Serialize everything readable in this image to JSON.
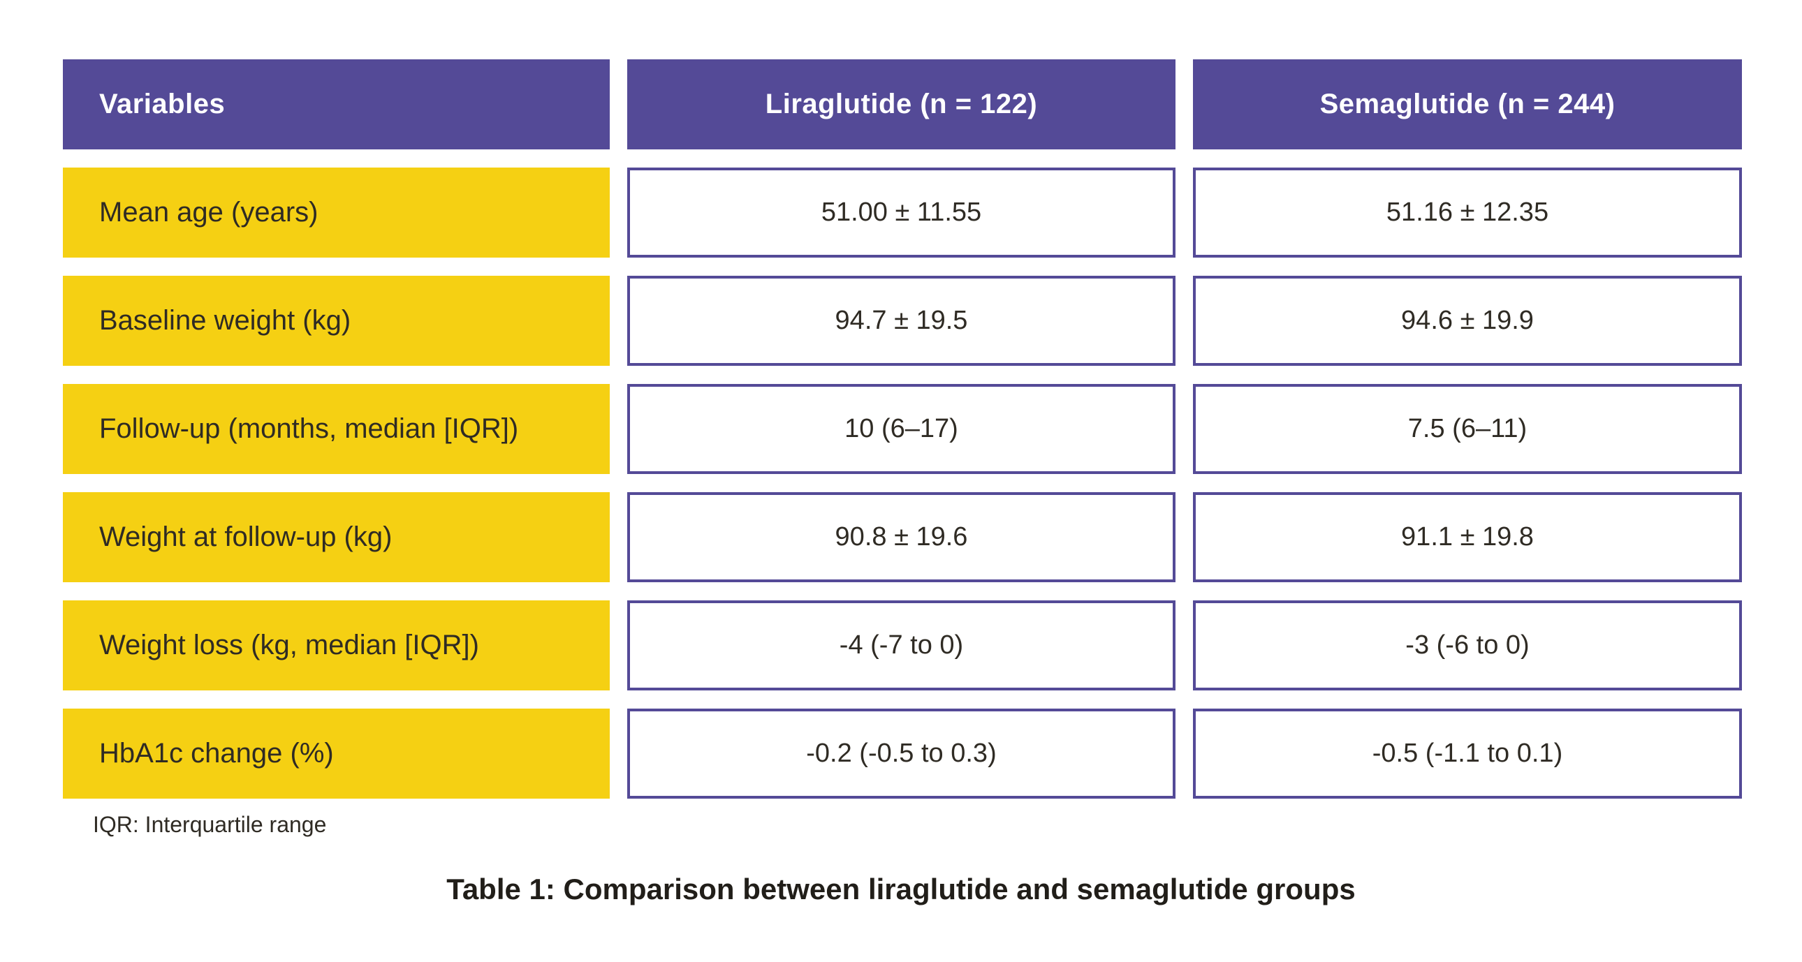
{
  "colors": {
    "header_purple": "#544a97",
    "cell_border_purple": "#544a97",
    "label_yellow": "#f5d013",
    "header_text": "#ffffff",
    "body_text": "#2f2b24",
    "background": "#ffffff"
  },
  "table": {
    "columns": {
      "variables": "Variables",
      "liraglutide": "Liraglutide (n = 122)",
      "semaglutide": "Semaglutide (n = 244)"
    },
    "rows": [
      {
        "label": "Mean age (years)",
        "liraglutide": "51.00 ± 11.55",
        "semaglutide": "51.16 ± 12.35"
      },
      {
        "label": "Baseline weight (kg)",
        "liraglutide": "94.7 ± 19.5",
        "semaglutide": "94.6 ± 19.9"
      },
      {
        "label": "Follow-up (months, median [IQR])",
        "liraglutide": "10 (6–17)",
        "semaglutide": "7.5 (6–11)"
      },
      {
        "label": "Weight at follow-up (kg)",
        "liraglutide": "90.8 ± 19.6",
        "semaglutide": "91.1 ± 19.8"
      },
      {
        "label": "Weight loss (kg, median [IQR])",
        "liraglutide": "-4 (-7 to 0)",
        "semaglutide": "-3 (-6 to 0)"
      },
      {
        "label": "HbA1c change (%)",
        "liraglutide": "-0.2 (-0.5 to 0.3)",
        "semaglutide": "-0.5 (-1.1 to 0.1)"
      }
    ],
    "footnote": "IQR: Interquartile range",
    "caption": "Table 1: Comparison between liraglutide and semaglutide groups"
  },
  "chart_data": {
    "type": "table",
    "title": "Table 1: Comparison between liraglutide and semaglutide groups",
    "columns": [
      "Variables",
      "Liraglutide (n = 122)",
      "Semaglutide (n = 244)"
    ],
    "rows": [
      [
        "Mean age (years)",
        "51.00 ± 11.55",
        "51.16 ± 12.35"
      ],
      [
        "Baseline weight (kg)",
        "94.7 ± 19.5",
        "94.6 ± 19.9"
      ],
      [
        "Follow-up (months, median [IQR])",
        "10 (6–17)",
        "7.5 (6–11)"
      ],
      [
        "Weight at follow-up (kg)",
        "90.8 ± 19.6",
        "91.1 ± 19.8"
      ],
      [
        "Weight loss (kg, median [IQR])",
        "-4 (-7 to 0)",
        "-3 (-6 to 0)"
      ],
      [
        "HbA1c change (%)",
        "-0.2 (-0.5 to 0.3)",
        "-0.5 (-1.1 to 0.1)"
      ]
    ],
    "footnote": "IQR: Interquartile range",
    "group_sizes": {
      "liraglutide_n": 122,
      "semaglutide_n": 244
    }
  }
}
